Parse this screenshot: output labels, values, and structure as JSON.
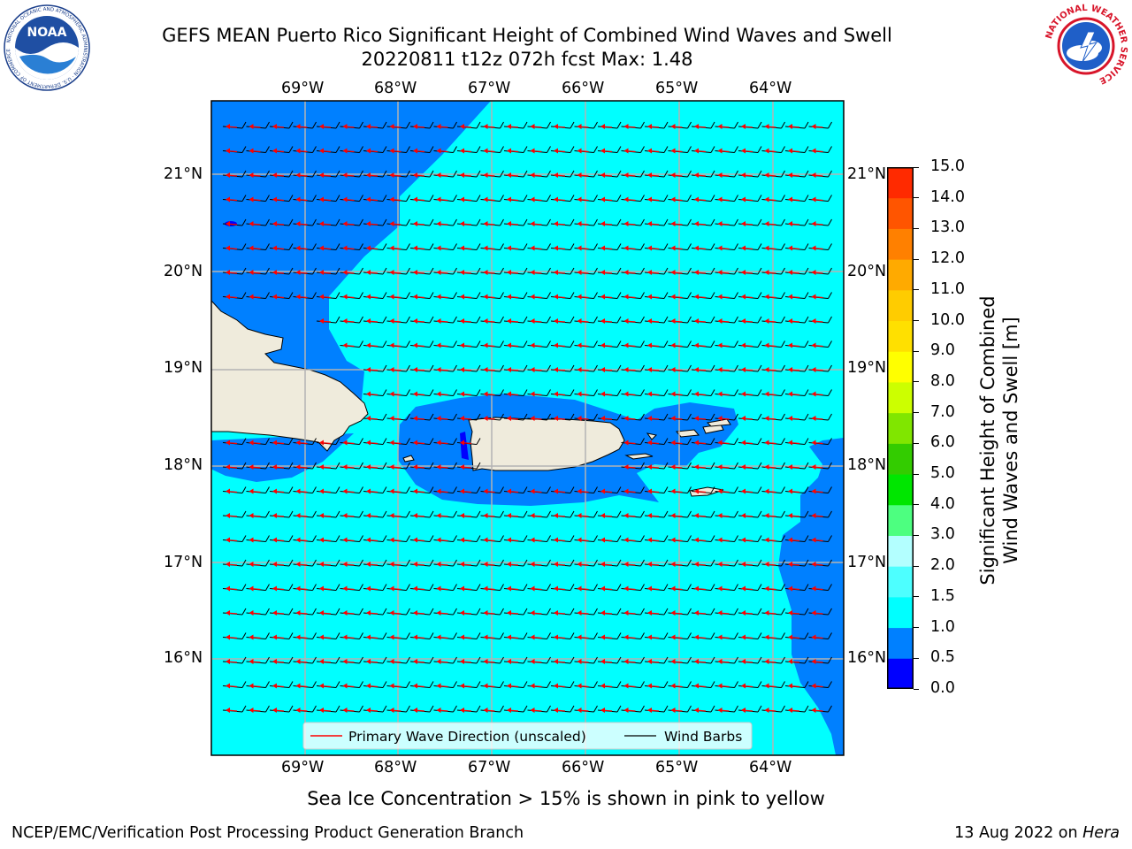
{
  "header": {
    "title": "GEFS MEAN Puerto Rico Significant Height of Combined Wind Waves and Swell",
    "subtitle": "20220811 t12z 072h fcst   Max: 1.48"
  },
  "logos": {
    "left": {
      "icon": "noaa-logo-icon",
      "text": "NOAA",
      "ring_text": "NATIONAL OCEANIC AND ATMOSPHERIC ADMINISTRATION · U.S. DEPARTMENT OF COMMERCE"
    },
    "right": {
      "icon": "nws-logo-icon",
      "ring_text": "NATIONAL WEATHER SERVICE"
    }
  },
  "map": {
    "lon_labels": [
      "69°W",
      "68°W",
      "67°W",
      "66°W",
      "65°W",
      "64°W"
    ],
    "lat_labels": [
      "21°N",
      "20°N",
      "19°N",
      "18°N",
      "17°N",
      "16°N"
    ],
    "colors": {
      "ocean_light": "#00ffff",
      "ocean_mid": "#0080ff",
      "ocean_deep": "#0000ff",
      "land": "#efebdc",
      "grid": "#b3b3b3",
      "wave_arrow": "#ff0000",
      "wind_barb": "#000000"
    },
    "legend": {
      "wave_label": "Primary Wave Direction (unscaled)",
      "barb_label": "Wind Barbs"
    }
  },
  "colorbar": {
    "label_line1": "Significant Height of Combined",
    "label_line2": "Wind Waves and Swell [m]",
    "ticks": [
      "0.0",
      "0.5",
      "1.0",
      "1.5",
      "2.0",
      "3.0",
      "4.0",
      "5.0",
      "6.0",
      "7.0",
      "8.0",
      "9.0",
      "10.0",
      "11.0",
      "12.0",
      "13.0",
      "14.0",
      "15.0"
    ],
    "colors": [
      "#0000ff",
      "#0080ff",
      "#00ffff",
      "#4dffff",
      "#b3ffff",
      "#4dff80",
      "#00e600",
      "#33cc00",
      "#80e600",
      "#ccff00",
      "#ffff00",
      "#ffe000",
      "#ffcc00",
      "#ffaa00",
      "#ff8000",
      "#ff5500",
      "#ff2a00"
    ]
  },
  "note": "Sea Ice Concentration > 15% is shown in pink to yellow",
  "footer": {
    "left": "NCEP/EMC/Verification Post Processing Product Generation Branch",
    "right_prefix": "13 Aug 2022 on ",
    "right_machine": "Hera"
  }
}
